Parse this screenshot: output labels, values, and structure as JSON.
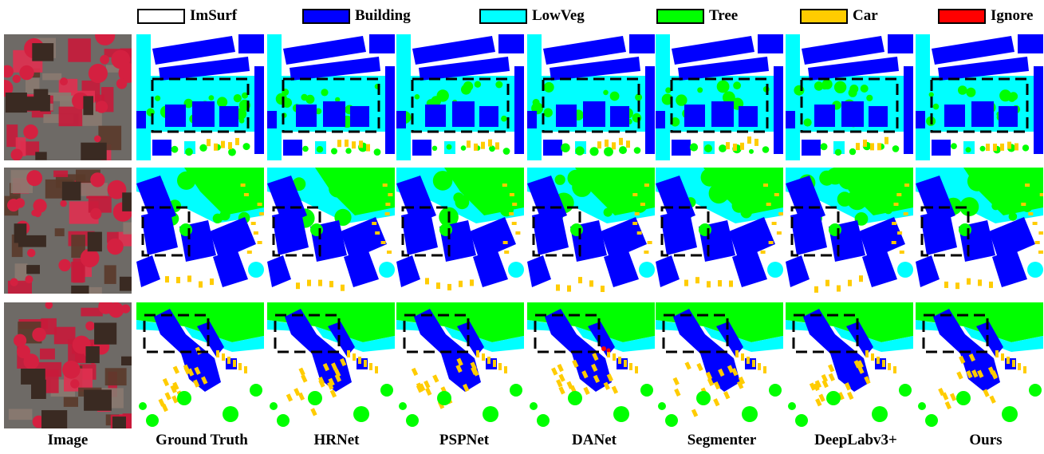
{
  "legend": [
    {
      "label": "ImSurf",
      "color": "#ffffff"
    },
    {
      "label": "Building",
      "color": "#0000ff"
    },
    {
      "label": "LowVeg",
      "color": "#00ffff"
    },
    {
      "label": "Tree",
      "color": "#00ff00"
    },
    {
      "label": "Car",
      "color": "#ffcc00"
    },
    {
      "label": "Ignore",
      "color": "#ff0000"
    }
  ],
  "columns": [
    "Image",
    "Ground Truth",
    "HRNet",
    "PSPNet",
    "DANet",
    "Segmenter",
    "DeepLabv3+",
    "Ours"
  ],
  "colors": {
    "imsurf": "#ffffff",
    "building": "#0000ff",
    "lowveg": "#00ffff",
    "tree": "#00ff00",
    "car": "#ffcc00",
    "ignore": "#ff0000",
    "highlight_box": "#000000"
  },
  "rows": 3
}
